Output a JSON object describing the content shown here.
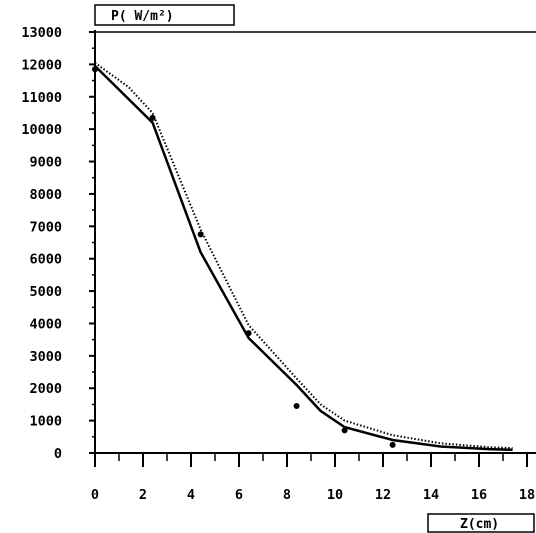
{
  "chart_data": {
    "type": "line",
    "ylabel": "P( W/m²)",
    "xlabel": "Z(cm)",
    "xlim": [
      0,
      18
    ],
    "ylim": [
      0,
      13000
    ],
    "x_ticks": [
      0,
      2,
      4,
      6,
      8,
      10,
      12,
      14,
      16,
      18
    ],
    "y_ticks": [
      0,
      1000,
      2000,
      3000,
      4000,
      5000,
      6000,
      7000,
      8000,
      9000,
      10000,
      11000,
      12000,
      13000
    ],
    "grid": false,
    "series": [
      {
        "style": "solid",
        "x": [
          0,
          2.4,
          4.4,
          6.4,
          8.4,
          9.4,
          10.4,
          12.4,
          14.4,
          16.4,
          17.4
        ],
        "y": [
          11950,
          10200,
          6200,
          3550,
          2100,
          1300,
          800,
          400,
          200,
          120,
          100
        ]
      },
      {
        "style": "dotted",
        "x": [
          0,
          1.4,
          2.4,
          4.4,
          6.4,
          8.4,
          9.4,
          10.4,
          12.4,
          14.4,
          16.4,
          17.4
        ],
        "y": [
          12050,
          11300,
          10500,
          6900,
          3950,
          2300,
          1500,
          1000,
          550,
          300,
          180,
          150
        ]
      },
      {
        "style": "points",
        "x": [
          0,
          2.4,
          4.4,
          6.4,
          8.4,
          10.4,
          12.4
        ],
        "y": [
          11850,
          10350,
          6750,
          3700,
          1450,
          700,
          250
        ]
      }
    ]
  }
}
